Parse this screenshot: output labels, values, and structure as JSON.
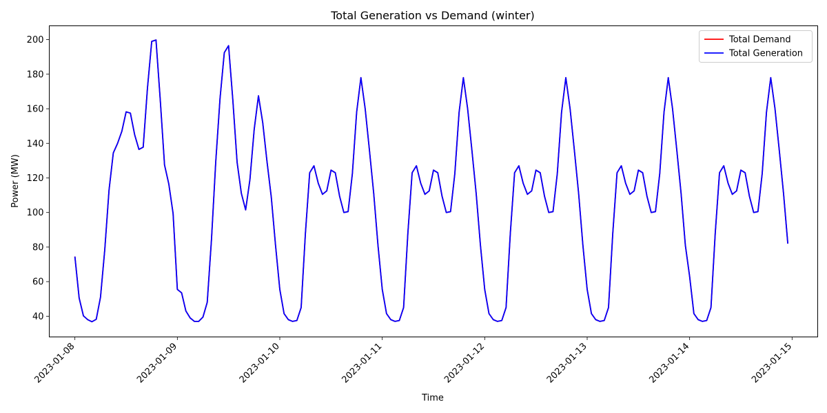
{
  "chart_data": {
    "type": "line",
    "title": "Total Generation vs Demand (winter)",
    "xlabel": "Time",
    "ylabel": "Power (MW)",
    "xlim": [
      "2023-01-07T18:00",
      "2023-01-15T06:00"
    ],
    "ylim": [
      28,
      208
    ],
    "xticks": [
      "2023-01-08",
      "2023-01-09",
      "2023-01-10",
      "2023-01-11",
      "2023-01-12",
      "2023-01-13",
      "2023-01-14",
      "2023-01-15"
    ],
    "yticks": [
      40,
      60,
      80,
      100,
      120,
      140,
      160,
      180,
      200
    ],
    "grid": false,
    "legend": "top-right",
    "x": [
      "2023-01-08T00:00",
      "2023-01-08T01:00",
      "2023-01-08T02:00",
      "2023-01-08T03:00",
      "2023-01-08T04:00",
      "2023-01-08T05:00",
      "2023-01-08T06:00",
      "2023-01-08T07:00",
      "2023-01-08T08:00",
      "2023-01-08T09:00",
      "2023-01-08T10:00",
      "2023-01-08T11:00",
      "2023-01-08T12:00",
      "2023-01-08T13:00",
      "2023-01-08T14:00",
      "2023-01-08T15:00",
      "2023-01-08T16:00",
      "2023-01-08T17:00",
      "2023-01-08T18:00",
      "2023-01-08T19:00",
      "2023-01-08T20:00",
      "2023-01-08T21:00",
      "2023-01-08T22:00",
      "2023-01-08T23:00",
      "2023-01-09T00:00",
      "2023-01-09T01:00",
      "2023-01-09T02:00",
      "2023-01-09T03:00",
      "2023-01-09T04:00",
      "2023-01-09T05:00",
      "2023-01-09T06:00",
      "2023-01-09T07:00",
      "2023-01-09T08:00",
      "2023-01-09T09:00",
      "2023-01-09T10:00",
      "2023-01-09T11:00",
      "2023-01-09T12:00",
      "2023-01-09T13:00",
      "2023-01-09T14:00",
      "2023-01-09T15:00",
      "2023-01-09T16:00",
      "2023-01-09T17:00",
      "2023-01-09T18:00",
      "2023-01-09T19:00",
      "2023-01-09T20:00",
      "2023-01-09T21:00",
      "2023-01-09T22:00",
      "2023-01-09T23:00",
      "2023-01-10T00:00",
      "2023-01-10T01:00",
      "2023-01-10T02:00",
      "2023-01-10T03:00",
      "2023-01-10T04:00",
      "2023-01-10T05:00",
      "2023-01-10T06:00",
      "2023-01-10T07:00",
      "2023-01-10T08:00",
      "2023-01-10T09:00",
      "2023-01-10T10:00",
      "2023-01-10T11:00",
      "2023-01-10T12:00",
      "2023-01-10T13:00",
      "2023-01-10T14:00",
      "2023-01-10T15:00",
      "2023-01-10T16:00",
      "2023-01-10T17:00",
      "2023-01-10T18:00",
      "2023-01-10T19:00",
      "2023-01-10T20:00",
      "2023-01-10T21:00",
      "2023-01-10T22:00",
      "2023-01-10T23:00",
      "2023-01-11T00:00",
      "2023-01-11T01:00",
      "2023-01-11T02:00",
      "2023-01-11T03:00",
      "2023-01-11T04:00",
      "2023-01-11T05:00",
      "2023-01-11T06:00",
      "2023-01-11T07:00",
      "2023-01-11T08:00",
      "2023-01-11T09:00",
      "2023-01-11T10:00",
      "2023-01-11T11:00",
      "2023-01-11T12:00",
      "2023-01-11T13:00",
      "2023-01-11T14:00",
      "2023-01-11T15:00",
      "2023-01-11T16:00",
      "2023-01-11T17:00",
      "2023-01-11T18:00",
      "2023-01-11T19:00",
      "2023-01-11T20:00",
      "2023-01-11T21:00",
      "2023-01-11T22:00",
      "2023-01-11T23:00",
      "2023-01-12T00:00",
      "2023-01-12T01:00",
      "2023-01-12T02:00",
      "2023-01-12T03:00",
      "2023-01-12T04:00",
      "2023-01-12T05:00",
      "2023-01-12T06:00",
      "2023-01-12T07:00",
      "2023-01-12T08:00",
      "2023-01-12T09:00",
      "2023-01-12T10:00",
      "2023-01-12T11:00",
      "2023-01-12T12:00",
      "2023-01-12T13:00",
      "2023-01-12T14:00",
      "2023-01-12T15:00",
      "2023-01-12T16:00",
      "2023-01-12T17:00",
      "2023-01-12T18:00",
      "2023-01-12T19:00",
      "2023-01-12T20:00",
      "2023-01-12T21:00",
      "2023-01-12T22:00",
      "2023-01-12T23:00",
      "2023-01-13T00:00",
      "2023-01-13T01:00",
      "2023-01-13T02:00",
      "2023-01-13T03:00",
      "2023-01-13T04:00",
      "2023-01-13T05:00",
      "2023-01-13T06:00",
      "2023-01-13T07:00",
      "2023-01-13T08:00",
      "2023-01-13T09:00",
      "2023-01-13T10:00",
      "2023-01-13T11:00",
      "2023-01-13T12:00",
      "2023-01-13T13:00",
      "2023-01-13T14:00",
      "2023-01-13T15:00",
      "2023-01-13T16:00",
      "2023-01-13T17:00",
      "2023-01-13T18:00",
      "2023-01-13T19:00",
      "2023-01-13T20:00",
      "2023-01-13T21:00",
      "2023-01-13T22:00",
      "2023-01-13T23:00",
      "2023-01-14T00:00",
      "2023-01-14T01:00",
      "2023-01-14T02:00",
      "2023-01-14T03:00",
      "2023-01-14T04:00",
      "2023-01-14T05:00",
      "2023-01-14T06:00",
      "2023-01-14T07:00",
      "2023-01-14T08:00",
      "2023-01-14T09:00",
      "2023-01-14T10:00",
      "2023-01-14T11:00",
      "2023-01-14T12:00",
      "2023-01-14T13:00",
      "2023-01-14T14:00",
      "2023-01-14T15:00",
      "2023-01-14T16:00",
      "2023-01-14T17:00",
      "2023-01-14T18:00",
      "2023-01-14T19:00",
      "2023-01-14T20:00",
      "2023-01-14T21:00",
      "2023-01-14T22:00",
      "2023-01-14T23:00"
    ],
    "series": [
      {
        "name": "Total Demand",
        "color": "#ff0000",
        "values": [
          74.5,
          50.5,
          40.2,
          38.0,
          36.8,
          38.2,
          51.0,
          78.5,
          113.0,
          134.5,
          140.0,
          147.0,
          158.2,
          157.5,
          145.0,
          136.5,
          137.8,
          172.0,
          199.0,
          199.8,
          165.0,
          127.5,
          116.5,
          99.5,
          55.5,
          53.5,
          43.0,
          39.0,
          37.0,
          37.0,
          39.5,
          48.0,
          84.5,
          129.5,
          166.0,
          192.5,
          196.5,
          165.0,
          129.0,
          111.0,
          101.5,
          119.0,
          148.0,
          167.5,
          152.0,
          129.5,
          109.0,
          81.0,
          55.5,
          41.5,
          38.0,
          37.0,
          37.5,
          45.0,
          88.0,
          123.0,
          127.0,
          117.0,
          110.5,
          112.5,
          124.5,
          123.0,
          109.5,
          100.0,
          100.5,
          122.5,
          158.0,
          178.0,
          160.0,
          136.0,
          111.0,
          81.0,
          55.5,
          41.5,
          38.0,
          37.0,
          37.5,
          45.0,
          88.0,
          123.0,
          127.0,
          117.0,
          110.5,
          112.5,
          124.5,
          123.0,
          109.5,
          100.0,
          100.5,
          122.5,
          158.0,
          178.0,
          160.0,
          136.0,
          111.0,
          81.0,
          55.5,
          41.5,
          38.0,
          37.0,
          37.5,
          45.0,
          88.0,
          123.0,
          127.0,
          117.0,
          110.5,
          112.5,
          124.5,
          123.0,
          109.5,
          100.0,
          100.5,
          122.5,
          158.0,
          178.0,
          160.0,
          136.0,
          111.0,
          81.0,
          55.5,
          41.5,
          38.0,
          37.0,
          37.5,
          45.0,
          88.0,
          123.0,
          127.0,
          117.0,
          110.5,
          112.5,
          124.5,
          123.0,
          109.5,
          100.0,
          100.5,
          122.5,
          158.0,
          178.0,
          160.0,
          136.0,
          111.0,
          81.0,
          63.0,
          41.5,
          38.0,
          37.0,
          37.5,
          45.0,
          88.0,
          123.0,
          127.0,
          117.0,
          110.5,
          112.5,
          124.5,
          123.0,
          109.5,
          100.0,
          100.5,
          122.5,
          158.0,
          178.0,
          160.0,
          136.0,
          111.0,
          82.0
        ]
      },
      {
        "name": "Total Generation",
        "color": "#0000ff",
        "values": [
          74.5,
          50.5,
          40.2,
          38.0,
          36.8,
          38.2,
          51.0,
          78.5,
          113.0,
          134.5,
          140.0,
          147.0,
          158.2,
          157.5,
          145.0,
          136.5,
          137.8,
          172.0,
          199.0,
          199.8,
          165.0,
          127.5,
          116.5,
          99.5,
          55.5,
          53.5,
          43.0,
          39.0,
          37.0,
          37.0,
          39.5,
          48.0,
          84.5,
          129.5,
          166.0,
          192.5,
          196.5,
          165.0,
          129.0,
          111.0,
          101.5,
          119.0,
          148.0,
          167.5,
          152.0,
          129.5,
          109.0,
          81.0,
          55.5,
          41.5,
          38.0,
          37.0,
          37.5,
          45.0,
          88.0,
          123.0,
          127.0,
          117.0,
          110.5,
          112.5,
          124.5,
          123.0,
          109.5,
          100.0,
          100.5,
          122.5,
          158.0,
          178.0,
          160.0,
          136.0,
          111.0,
          81.0,
          55.5,
          41.5,
          38.0,
          37.0,
          37.5,
          45.0,
          88.0,
          123.0,
          127.0,
          117.0,
          110.5,
          112.5,
          124.5,
          123.0,
          109.5,
          100.0,
          100.5,
          122.5,
          158.0,
          178.0,
          160.0,
          136.0,
          111.0,
          81.0,
          55.5,
          41.5,
          38.0,
          37.0,
          37.5,
          45.0,
          88.0,
          123.0,
          127.0,
          117.0,
          110.5,
          112.5,
          124.5,
          123.0,
          109.5,
          100.0,
          100.5,
          122.5,
          158.0,
          178.0,
          160.0,
          136.0,
          111.0,
          81.0,
          55.5,
          41.5,
          38.0,
          37.0,
          37.5,
          45.0,
          88.0,
          123.0,
          127.0,
          117.0,
          110.5,
          112.5,
          124.5,
          123.0,
          109.5,
          100.0,
          100.5,
          122.5,
          158.0,
          178.0,
          160.0,
          136.0,
          111.0,
          81.0,
          63.0,
          41.5,
          38.0,
          37.0,
          37.5,
          45.0,
          88.0,
          123.0,
          127.0,
          117.0,
          110.5,
          112.5,
          124.5,
          123.0,
          109.5,
          100.0,
          100.5,
          122.5,
          158.0,
          178.0,
          160.0,
          136.0,
          111.0,
          82.0
        ]
      }
    ]
  }
}
